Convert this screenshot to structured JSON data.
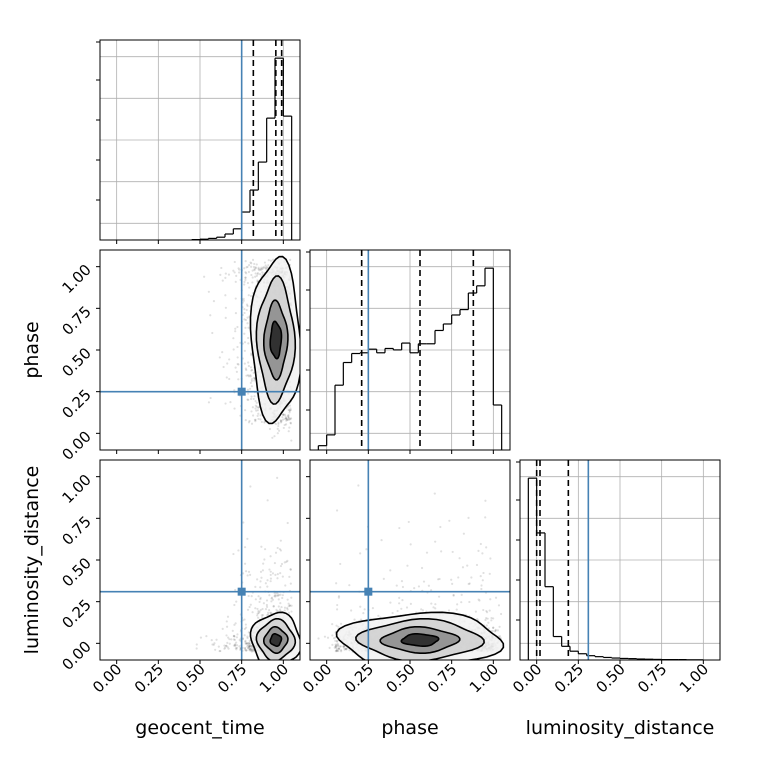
{
  "chart_data": {
    "type": "corner",
    "parameters": [
      "geocent_time",
      "phase",
      "luminosity_distance"
    ],
    "range": [
      -0.1,
      1.1
    ],
    "tick_labels": [
      "0.00",
      "0.25",
      "0.50",
      "0.75",
      "1.00"
    ],
    "ticks": [
      0.0,
      0.25,
      0.5,
      0.75,
      1.0
    ],
    "grid": true,
    "truth_color": "#4682b4",
    "truths": {
      "geocent_time": 0.75,
      "phase": 0.25,
      "luminosity_distance": 0.31
    },
    "histograms": [
      {
        "parameter": "geocent_time",
        "bin_edges": [
          0.45,
          0.5,
          0.55,
          0.6,
          0.65,
          0.7,
          0.75,
          0.8,
          0.85,
          0.9,
          0.95,
          1.0,
          1.05
        ],
        "counts": [
          1,
          2,
          4,
          7,
          15,
          28,
          70,
          125,
          195,
          305,
          455,
          310
        ],
        "quantiles": [
          0.82,
          0.955,
          0.99
        ]
      },
      {
        "parameter": "phase",
        "bin_edges": [
          -0.05,
          0.0,
          0.05,
          0.1,
          0.15,
          0.2,
          0.25,
          0.3,
          0.35,
          0.4,
          0.45,
          0.5,
          0.55,
          0.6,
          0.65,
          0.7,
          0.75,
          0.8,
          0.85,
          0.9,
          0.95,
          1.0,
          1.05
        ],
        "counts": [
          12,
          42,
          180,
          243,
          268,
          270,
          280,
          270,
          282,
          278,
          297,
          270,
          295,
          295,
          332,
          350,
          375,
          390,
          436,
          456,
          505,
          125
        ],
        "quantiles": [
          0.21,
          0.56,
          0.88
        ]
      },
      {
        "parameter": "luminosity_distance",
        "bin_edges": [
          -0.05,
          0.0,
          0.05,
          0.1,
          0.15,
          0.2,
          0.25,
          0.3,
          0.35,
          0.4,
          0.45,
          0.5,
          0.55,
          0.6,
          0.65,
          0.7,
          0.75,
          0.8,
          0.85,
          0.9,
          0.95,
          1.0
        ],
        "counts": [
          930,
          650,
          375,
          120,
          70,
          45,
          32,
          22,
          17,
          13,
          10,
          8,
          7,
          5,
          4,
          3,
          2,
          2,
          2,
          1,
          1
        ],
        "quantiles": [
          0.0,
          0.02,
          0.19
        ]
      }
    ]
  }
}
